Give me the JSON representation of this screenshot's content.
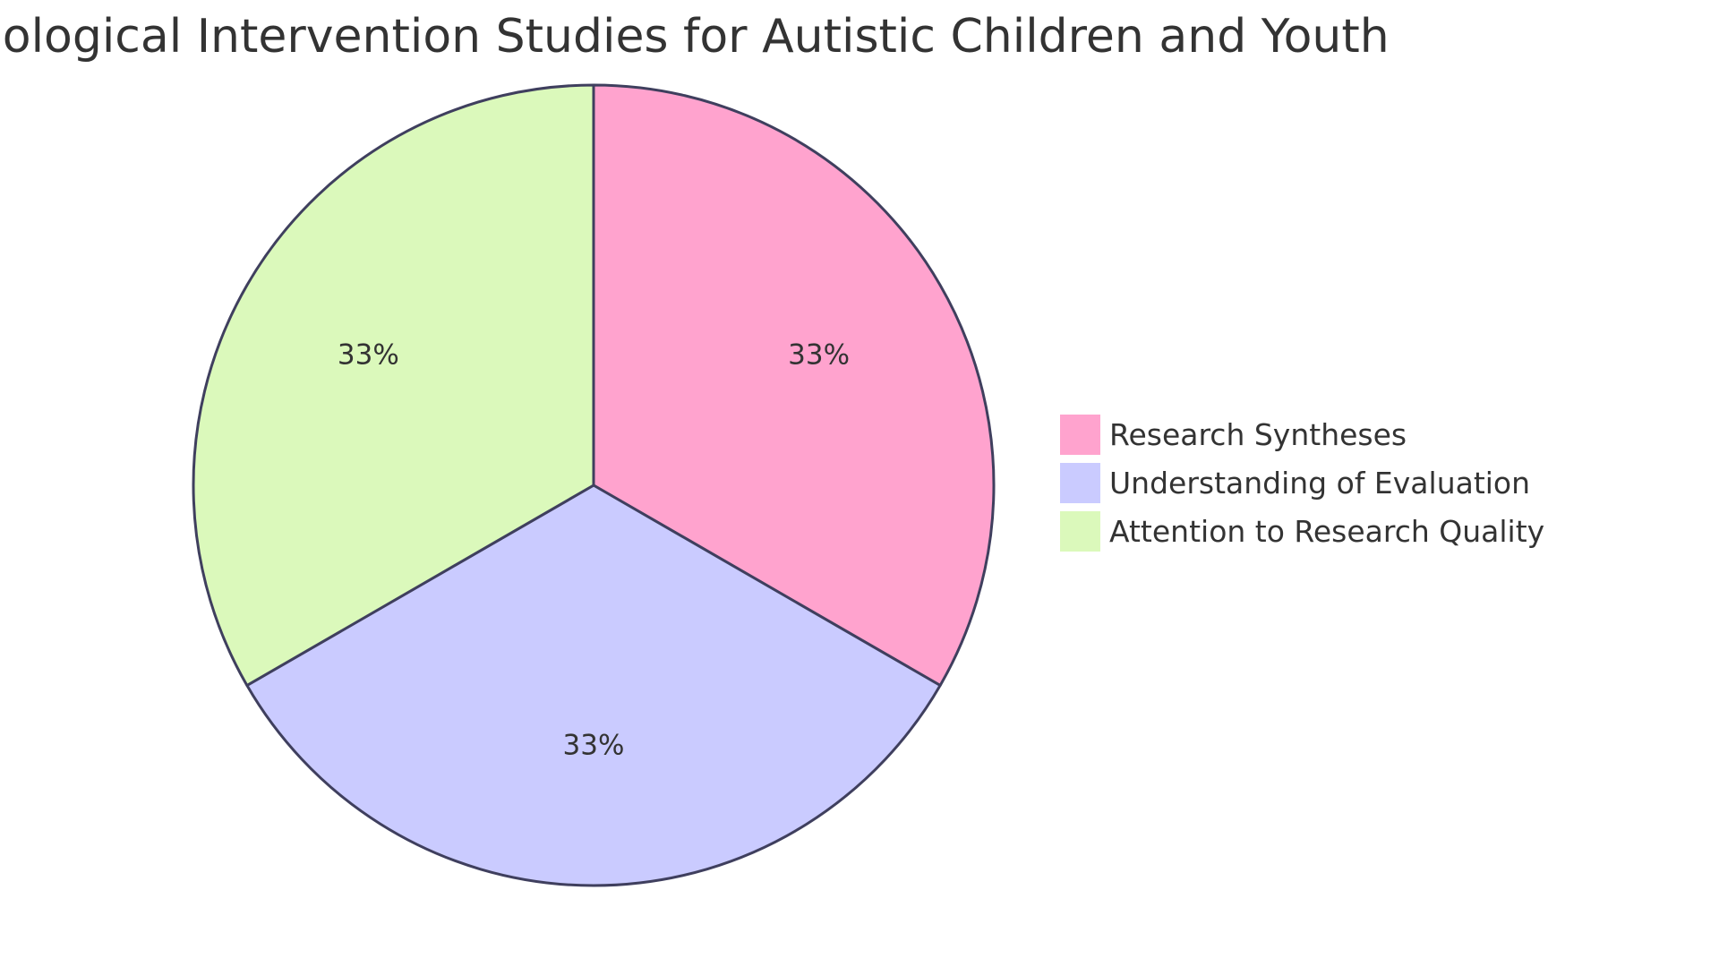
{
  "chart_data": {
    "type": "pie",
    "title": "Pharmacological Intervention Studies for Autistic Children and Youth",
    "slices": [
      {
        "label": "Research Syntheses",
        "value": 33.33,
        "percent_label": "33%",
        "color": "#FFA3CE"
      },
      {
        "label": "Understanding of Evaluation",
        "value": 33.33,
        "percent_label": "33%",
        "color": "#CACBFF"
      },
      {
        "label": "Attention to Research Quality",
        "value": 33.33,
        "percent_label": "33%",
        "color": "#DBF9BB"
      }
    ],
    "start_angle_deg": 0,
    "direction": "clockwise",
    "legend": {
      "position": "right"
    },
    "stroke_color": "#3F3F5E"
  }
}
